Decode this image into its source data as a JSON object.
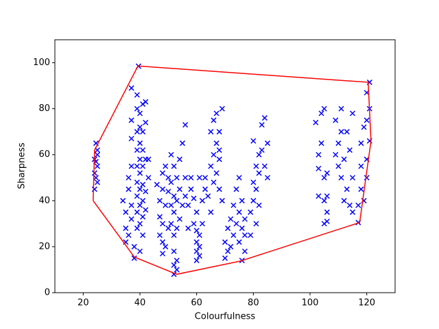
{
  "chart_data": {
    "type": "scatter",
    "xlabel": "Colourfulness",
    "ylabel": "Sharpness",
    "xlim": [
      10,
      130
    ],
    "ylim": [
      0,
      110
    ],
    "xticks": [
      20,
      40,
      60,
      80,
      100,
      120
    ],
    "yticks": [
      0,
      20,
      40,
      60,
      80,
      100
    ],
    "grid": false,
    "series": [
      {
        "color": "#0000ff",
        "marker": "x",
        "x": [
          24,
          24.5,
          25,
          24,
          25,
          24.5,
          25,
          24,
          25,
          24.5,
          34,
          35,
          35,
          35,
          36,
          36,
          37,
          37,
          36,
          37,
          37,
          37,
          37,
          38,
          38,
          39,
          39,
          39,
          39,
          39,
          39,
          39,
          39,
          39,
          39.5,
          40,
          40,
          40,
          40,
          40,
          40,
          40,
          40,
          40,
          41,
          41,
          41,
          41,
          41,
          41,
          41,
          41,
          42,
          42,
          42,
          42,
          42,
          43,
          43,
          46,
          47,
          47,
          47,
          48,
          48,
          48,
          48,
          48,
          49,
          49,
          49,
          50,
          50,
          50,
          51,
          51,
          51,
          51,
          52,
          52,
          52,
          52,
          52,
          52,
          52,
          53,
          53,
          53,
          53,
          53,
          54,
          54,
          54,
          55,
          55,
          56,
          56,
          56,
          57,
          57,
          58,
          58,
          59,
          59,
          60,
          60,
          60,
          60,
          60,
          61,
          61,
          61,
          61,
          62,
          62,
          63,
          63,
          64,
          65,
          65,
          65,
          66,
          66,
          66,
          67,
          67,
          67,
          68,
          68,
          68,
          69,
          69,
          68,
          70,
          70,
          71,
          71,
          72,
          72,
          73,
          73,
          74,
          74,
          75,
          75,
          75,
          76,
          76,
          76,
          77,
          77,
          77,
          79,
          79,
          80,
          80,
          80,
          81,
          81,
          81,
          82,
          82,
          82,
          83,
          83,
          84,
          84,
          85,
          85,
          102,
          103,
          103,
          103,
          104,
          104,
          105,
          105,
          105,
          105,
          106,
          106,
          106,
          106,
          109,
          109,
          110,
          110,
          111,
          111,
          111,
          112,
          112,
          113,
          113,
          114,
          114,
          115,
          115,
          115,
          117,
          117,
          118,
          118,
          118,
          119,
          119,
          120,
          120,
          120,
          121,
          121,
          121,
          120
        ],
        "values": [
          45,
          50,
          55,
          58,
          62,
          65,
          60,
          52,
          48,
          57,
          40,
          35,
          28,
          22,
          45,
          50,
          38,
          32,
          25,
          55,
          67,
          75,
          89,
          15,
          20,
          28,
          35,
          42,
          48,
          55,
          62,
          70,
          80,
          86,
          98.5,
          18,
          30,
          38,
          45,
          52,
          58,
          65,
          72,
          78,
          25,
          33,
          40,
          47,
          55,
          62,
          70,
          82,
          36,
          44,
          58,
          74,
          83,
          58,
          50,
          47,
          40,
          33,
          25,
          17,
          22,
          30,
          45,
          52,
          20,
          38,
          55,
          28,
          44,
          50,
          30,
          38,
          48,
          60,
          8,
          12,
          18,
          25,
          35,
          42,
          55,
          10,
          14,
          28,
          40,
          50,
          32,
          45,
          58,
          38,
          65,
          73,
          42,
          50,
          28,
          38,
          45,
          50,
          30,
          41,
          14,
          18,
          22,
          27,
          35,
          16,
          20,
          25,
          50,
          30,
          40,
          45,
          50,
          42,
          35,
          55,
          70,
          48,
          60,
          75,
          52,
          65,
          78,
          45,
          58,
          70,
          40,
          80,
          62,
          15,
          22,
          18,
          28,
          20,
          32,
          25,
          38,
          30,
          45,
          22,
          35,
          50,
          14,
          28,
          40,
          18,
          25,
          32,
          25,
          35,
          40,
          48,
          66,
          30,
          45,
          55,
          38,
          52,
          60,
          62,
          73,
          55,
          76,
          50,
          65,
          74,
          42,
          54,
          60,
          65,
          78,
          30,
          40,
          50,
          80,
          35,
          42,
          52,
          31,
          75,
          60,
          55,
          65,
          50,
          70,
          80,
          40,
          58,
          45,
          70,
          38,
          62,
          78,
          50,
          35,
          30.5,
          38,
          45,
          55,
          65,
          72,
          40,
          58,
          75,
          87,
          91.5,
          80,
          66,
          50
        ]
      },
      {
        "color": "#ff0000",
        "marker": "line",
        "x": [
          23.5,
          24,
          39.3,
          120.5,
          121.5,
          117.5,
          75.3,
          53,
          38,
          34.5,
          23.5
        ],
        "values": [
          40,
          62,
          98.6,
          91.5,
          66,
          30.5,
          13.7,
          8,
          15.5,
          21.5,
          40
        ]
      }
    ]
  }
}
